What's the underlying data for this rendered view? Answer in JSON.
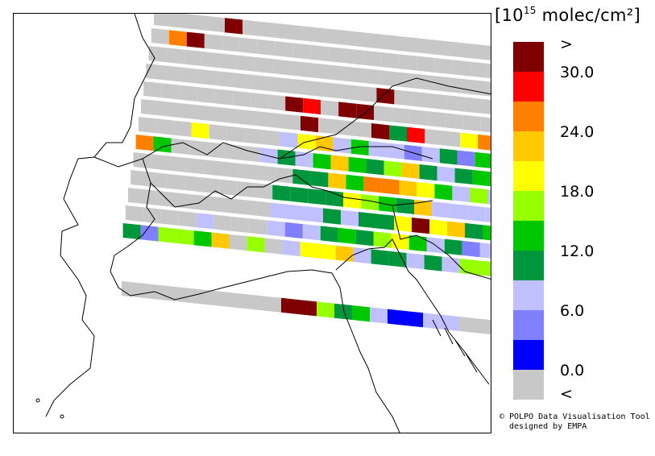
{
  "legend": {
    "title_prefix": "[10",
    "title_exp": "15",
    "title_suffix": " molec/cm²]",
    "colors": [
      "#7f0000",
      "#ff0000",
      "#ff7f00",
      "#ffc800",
      "#ffff00",
      "#96ff00",
      "#00c800",
      "#00963c",
      "#c0c0ff",
      "#8080ff",
      "#0000ff",
      "#c8c8c8"
    ],
    "labels": [
      ">",
      "30.0",
      "24.0",
      "18.0",
      "12.0",
      "6.0",
      "0.0",
      "<"
    ]
  },
  "credit": {
    "line1": "© POLPO Data Visualisation Tool",
    "line2": "designed by EMPA"
  },
  "map": {
    "colors": [
      "#c8c8c8",
      "#0000ff",
      "#8080ff",
      "#c0c0ff",
      "#00963c",
      "#00c800",
      "#96ff00",
      "#ffff00",
      "#ffc800",
      "#ff7f00",
      "#ff0000",
      "#7f0000"
    ],
    "rows": [
      "0000000000000000000000000000",
      "0000000000000000000000000000",
      "0000000000000000000000000000",
      "0000000000000000000000000000",
      "0000000000000000000000000000",
      "0000000000000000000000000000",
      "0000000000000000000000000000",
      "0000000000000000000000000000",
      "0000000000000000000000000000",
      "0000000000000000000000000000",
      "0000000000000000000000000000",
      "0000000000000000000000000000",
      "0000000000000000000000000000"
    ],
    "highlights": [
      [
        0,
        4,
        11
      ],
      [
        1,
        1,
        9
      ],
      [
        1,
        2,
        11
      ],
      [
        3,
        13,
        11
      ],
      [
        4,
        8,
        11
      ],
      [
        4,
        9,
        10
      ],
      [
        4,
        11,
        11
      ],
      [
        4,
        12,
        11
      ],
      [
        5,
        9,
        11
      ],
      [
        5,
        13,
        11
      ],
      [
        5,
        14,
        4
      ],
      [
        5,
        15,
        10
      ],
      [
        5,
        18,
        7
      ],
      [
        5,
        19,
        9
      ],
      [
        5,
        20,
        8
      ],
      [
        6,
        3,
        7
      ],
      [
        6,
        8,
        3
      ],
      [
        6,
        9,
        7
      ],
      [
        6,
        10,
        8
      ],
      [
        6,
        11,
        3
      ],
      [
        6,
        12,
        5
      ],
      [
        6,
        13,
        3
      ],
      [
        6,
        14,
        3
      ],
      [
        6,
        15,
        2
      ],
      [
        6,
        16,
        3
      ],
      [
        6,
        17,
        4
      ],
      [
        6,
        18,
        2
      ],
      [
        6,
        19,
        5
      ],
      [
        6,
        20,
        7
      ],
      [
        6,
        21,
        6
      ],
      [
        6,
        22,
        5
      ],
      [
        7,
        0,
        9
      ],
      [
        7,
        1,
        5
      ],
      [
        7,
        7,
        3
      ],
      [
        7,
        8,
        4
      ],
      [
        7,
        9,
        3
      ],
      [
        7,
        10,
        5
      ],
      [
        7,
        11,
        8
      ],
      [
        7,
        12,
        5
      ],
      [
        7,
        13,
        4
      ],
      [
        7,
        14,
        6
      ],
      [
        7,
        15,
        8
      ],
      [
        7,
        16,
        4
      ],
      [
        7,
        17,
        3
      ],
      [
        7,
        18,
        4
      ],
      [
        7,
        19,
        5
      ],
      [
        7,
        20,
        5
      ],
      [
        7,
        21,
        5
      ],
      [
        8,
        9,
        4
      ],
      [
        8,
        10,
        4
      ],
      [
        8,
        11,
        8
      ],
      [
        8,
        12,
        5
      ],
      [
        8,
        13,
        9
      ],
      [
        8,
        14,
        9
      ],
      [
        8,
        15,
        8
      ],
      [
        8,
        16,
        7
      ],
      [
        8,
        17,
        5
      ],
      [
        8,
        18,
        3
      ],
      [
        8,
        19,
        6
      ],
      [
        8,
        20,
        3
      ],
      [
        8,
        21,
        3
      ],
      [
        8,
        22,
        3
      ],
      [
        9,
        8,
        4
      ],
      [
        9,
        9,
        4
      ],
      [
        9,
        10,
        4
      ],
      [
        9,
        11,
        4
      ],
      [
        9,
        12,
        7
      ],
      [
        9,
        13,
        6
      ],
      [
        9,
        14,
        5
      ],
      [
        9,
        15,
        4
      ],
      [
        9,
        16,
        8
      ],
      [
        9,
        17,
        3
      ],
      [
        9,
        18,
        3
      ],
      [
        9,
        19,
        3
      ],
      [
        9,
        20,
        3
      ],
      [
        9,
        21,
        3
      ],
      [
        9,
        22,
        4
      ],
      [
        10,
        8,
        3
      ],
      [
        10,
        9,
        3
      ],
      [
        10,
        10,
        3
      ],
      [
        10,
        11,
        4
      ],
      [
        10,
        12,
        3
      ],
      [
        10,
        13,
        4
      ],
      [
        10,
        14,
        4
      ],
      [
        10,
        15,
        7
      ],
      [
        10,
        16,
        11
      ],
      [
        10,
        17,
        7
      ],
      [
        10,
        18,
        8
      ],
      [
        10,
        19,
        4
      ],
      [
        10,
        20,
        5
      ],
      [
        10,
        21,
        3
      ],
      [
        10,
        22,
        3
      ],
      [
        10,
        23,
        3
      ],
      [
        11,
        4,
        3
      ],
      [
        11,
        8,
        3
      ],
      [
        11,
        9,
        2
      ],
      [
        11,
        10,
        3
      ],
      [
        11,
        11,
        4
      ],
      [
        11,
        12,
        5
      ],
      [
        11,
        13,
        4
      ],
      [
        11,
        14,
        6
      ],
      [
        11,
        15,
        7
      ],
      [
        11,
        16,
        5
      ],
      [
        11,
        17,
        3
      ],
      [
        11,
        18,
        4
      ],
      [
        11,
        19,
        2
      ],
      [
        11,
        20,
        3
      ],
      [
        11,
        21,
        5
      ],
      [
        11,
        22,
        3
      ],
      [
        11,
        23,
        4
      ],
      [
        12,
        0,
        4
      ],
      [
        12,
        1,
        2
      ],
      [
        12,
        2,
        6
      ],
      [
        12,
        3,
        6
      ],
      [
        12,
        4,
        5
      ],
      [
        12,
        5,
        8
      ],
      [
        12,
        7,
        6
      ],
      [
        12,
        9,
        3
      ],
      [
        12,
        10,
        7
      ],
      [
        12,
        11,
        7
      ],
      [
        12,
        12,
        8
      ],
      [
        12,
        13,
        3
      ],
      [
        12,
        14,
        4
      ],
      [
        12,
        15,
        4
      ],
      [
        12,
        16,
        3
      ],
      [
        12,
        17,
        4
      ],
      [
        12,
        18,
        3
      ],
      [
        12,
        19,
        6
      ],
      [
        12,
        20,
        6
      ],
      [
        12,
        21,
        3
      ],
      [
        12,
        22,
        3
      ],
      [
        12,
        23,
        2
      ]
    ],
    "lower_row": [
      [
        9,
        11
      ],
      [
        10,
        11
      ],
      [
        11,
        6
      ],
      [
        12,
        4
      ],
      [
        13,
        5
      ],
      [
        14,
        3
      ],
      [
        15,
        1
      ],
      [
        16,
        1
      ],
      [
        17,
        3
      ],
      [
        18,
        3
      ]
    ]
  }
}
